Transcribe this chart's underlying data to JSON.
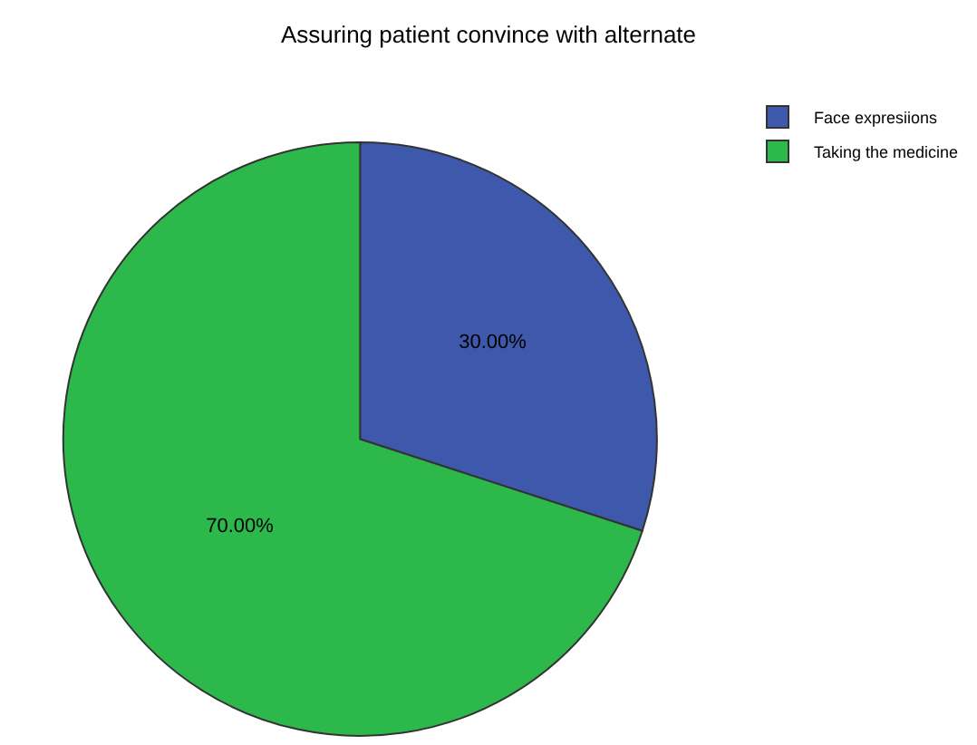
{
  "chart_data": {
    "type": "pie",
    "title": "Assuring patient convince with alternate",
    "categories": [
      "Face expresiions",
      "Taking the medicine"
    ],
    "values": [
      30,
      70
    ],
    "colors": [
      "#3e58ac",
      "#2db84c"
    ],
    "value_labels": [
      "30.00%",
      "70.00%"
    ],
    "legend": "top right"
  }
}
